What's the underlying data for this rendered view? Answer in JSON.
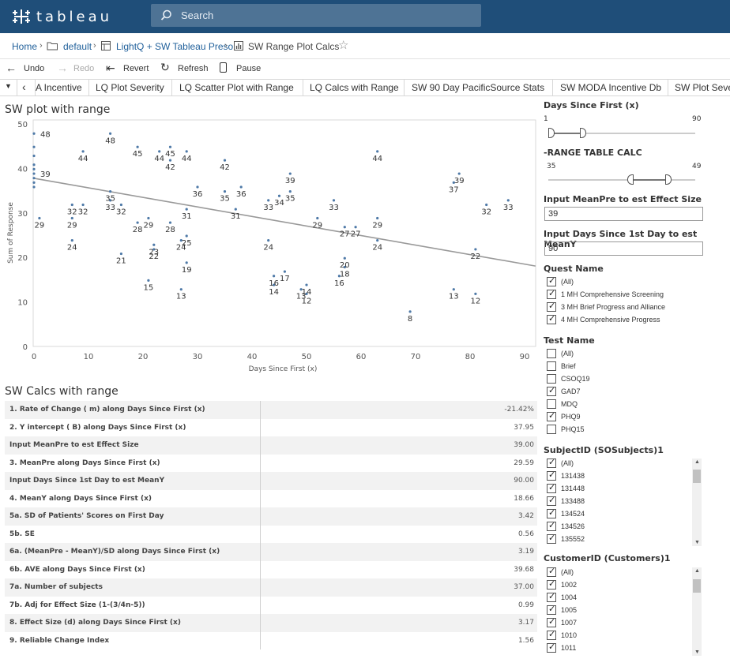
{
  "brand": "tableau",
  "search": {
    "placeholder": "Search"
  },
  "breadcrumb": {
    "home": "Home",
    "folder": "default",
    "workbook": "LightQ + SW Tableau Preso",
    "view": "SW Range Plot Calcs"
  },
  "toolbar": {
    "undo": "Undo",
    "redo": "Redo",
    "revert": "Revert",
    "refresh": "Refresh",
    "pause": "Pause"
  },
  "tabs": [
    "A Incentive",
    "LQ Plot Severity",
    "LQ Scatter Plot with Range",
    "LQ Calcs with Range",
    "SW 90 Day PacificSource Stats",
    "SW MODA Incentive Db",
    "SW Plot Seve"
  ],
  "colors": {
    "topbar": "#1f4e79",
    "point": "#4e79a7",
    "trend": "#999999",
    "link": "#1f5f9a"
  },
  "icons": [
    "tableau-logo-icon",
    "search-icon",
    "folder-icon",
    "workbook-icon",
    "view-icon",
    "star-icon",
    "undo-icon",
    "redo-icon",
    "revert-icon",
    "refresh-icon",
    "pause-icon",
    "tab-menu-icon",
    "tab-left-icon"
  ],
  "chart_title": "SW plot with range",
  "chart_data": {
    "type": "scatter",
    "xlabel": "Days Since First (x)",
    "ylabel": "Sum of Response",
    "xlim": [
      0,
      92
    ],
    "ylim": [
      0,
      50
    ],
    "xticks": [
      0,
      10,
      20,
      30,
      40,
      50,
      60,
      70,
      80,
      90
    ],
    "yticks": [
      0,
      10,
      20,
      30,
      40,
      50
    ],
    "grid": false,
    "trend_line": {
      "intercept": 37.95,
      "slope": -0.2142
    },
    "points": [
      [
        0,
        48
      ],
      [
        0,
        45
      ],
      [
        0,
        43
      ],
      [
        0,
        41
      ],
      [
        0,
        40
      ],
      [
        0,
        39
      ],
      [
        0,
        38
      ],
      [
        0,
        37
      ],
      [
        0,
        36
      ],
      [
        1,
        29
      ],
      [
        7,
        32
      ],
      [
        7,
        29
      ],
      [
        7,
        24
      ],
      [
        9,
        32
      ],
      [
        9,
        44
      ],
      [
        14,
        48
      ],
      [
        14,
        35
      ],
      [
        14,
        33
      ],
      [
        16,
        32
      ],
      [
        16,
        21
      ],
      [
        19,
        45
      ],
      [
        19,
        28
      ],
      [
        21,
        29
      ],
      [
        21,
        15
      ],
      [
        22,
        23
      ],
      [
        22,
        22
      ],
      [
        23,
        44
      ],
      [
        25,
        45
      ],
      [
        25,
        42
      ],
      [
        25,
        28
      ],
      [
        27,
        24
      ],
      [
        27,
        13
      ],
      [
        28,
        31
      ],
      [
        28,
        19
      ],
      [
        28,
        25
      ],
      [
        28,
        44
      ],
      [
        30,
        36
      ],
      [
        35,
        35
      ],
      [
        35,
        42
      ],
      [
        37,
        31
      ],
      [
        38,
        36
      ],
      [
        43,
        33
      ],
      [
        43,
        24
      ],
      [
        44,
        16
      ],
      [
        44,
        14
      ],
      [
        45,
        34
      ],
      [
        46,
        17
      ],
      [
        47,
        35
      ],
      [
        47,
        39
      ],
      [
        49,
        13
      ],
      [
        50,
        12
      ],
      [
        50,
        14
      ],
      [
        52,
        29
      ],
      [
        55,
        33
      ],
      [
        56,
        16
      ],
      [
        57,
        18
      ],
      [
        57,
        20
      ],
      [
        57,
        27
      ],
      [
        59,
        27
      ],
      [
        63,
        44
      ],
      [
        63,
        29
      ],
      [
        63,
        24
      ],
      [
        69,
        8
      ],
      [
        77,
        37
      ],
      [
        77,
        13
      ],
      [
        78,
        39
      ],
      [
        81,
        22
      ],
      [
        81,
        12
      ],
      [
        83,
        32
      ],
      [
        87,
        33
      ]
    ],
    "labels": [
      [
        0,
        48,
        "48"
      ],
      [
        0,
        39,
        "39"
      ],
      [
        1,
        29,
        "29"
      ],
      [
        7,
        32,
        "32"
      ],
      [
        7,
        29,
        "29"
      ],
      [
        7,
        24,
        "24"
      ],
      [
        9,
        32,
        "32"
      ],
      [
        9,
        44,
        "44"
      ],
      [
        14,
        48,
        "48"
      ],
      [
        14,
        35,
        "35"
      ],
      [
        14,
        33,
        "33"
      ],
      [
        16,
        32,
        "32"
      ],
      [
        16,
        21,
        "21"
      ],
      [
        19,
        45,
        "45"
      ],
      [
        19,
        28,
        "28"
      ],
      [
        21,
        29,
        "29"
      ],
      [
        21,
        15,
        "15"
      ],
      [
        22,
        23,
        "23"
      ],
      [
        22,
        22,
        "22"
      ],
      [
        23,
        44,
        "44"
      ],
      [
        25,
        45,
        "45"
      ],
      [
        25,
        42,
        "42"
      ],
      [
        25,
        28,
        "28"
      ],
      [
        27,
        24,
        "24"
      ],
      [
        27,
        13,
        "13"
      ],
      [
        28,
        31,
        "31"
      ],
      [
        28,
        19,
        "19"
      ],
      [
        28,
        25,
        "25"
      ],
      [
        28,
        44,
        "44"
      ],
      [
        30,
        36,
        "36"
      ],
      [
        35,
        35,
        "35"
      ],
      [
        35,
        42,
        "42"
      ],
      [
        37,
        31,
        "31"
      ],
      [
        38,
        36,
        "36"
      ],
      [
        43,
        33,
        "33"
      ],
      [
        43,
        24,
        "24"
      ],
      [
        44,
        16,
        "16"
      ],
      [
        44,
        14,
        "14"
      ],
      [
        45,
        34,
        "34"
      ],
      [
        46,
        17,
        "17"
      ],
      [
        47,
        35,
        "35"
      ],
      [
        47,
        39,
        "39"
      ],
      [
        49,
        13,
        "13"
      ],
      [
        50,
        12,
        "12"
      ],
      [
        50,
        14,
        "14"
      ],
      [
        52,
        29,
        "29"
      ],
      [
        55,
        33,
        "33"
      ],
      [
        56,
        16,
        "16"
      ],
      [
        57,
        18,
        "18"
      ],
      [
        57,
        20,
        "20"
      ],
      [
        57,
        27,
        "27"
      ],
      [
        59,
        27,
        "27"
      ],
      [
        63,
        44,
        "44"
      ],
      [
        63,
        29,
        "29"
      ],
      [
        63,
        24,
        "24"
      ],
      [
        69,
        8,
        "8"
      ],
      [
        77,
        37,
        "37"
      ],
      [
        77,
        13,
        "13"
      ],
      [
        78,
        39,
        "39"
      ],
      [
        81,
        22,
        "22"
      ],
      [
        81,
        12,
        "12"
      ],
      [
        83,
        32,
        "32"
      ],
      [
        87,
        33,
        "33"
      ]
    ]
  },
  "calc_title": "SW Calcs with range",
  "calc_rows": [
    {
      "label": "1. Rate of Change ( m) along Days Since First (x)",
      "value": "-21.42%"
    },
    {
      "label": "2. Y intercept ( B) along Days Since First (x)",
      "value": "37.95"
    },
    {
      "label": "Input MeanPre to est Effect Size",
      "value": "39.00"
    },
    {
      "label": "3.  MeanPre along Days Since First (x)",
      "value": "29.59"
    },
    {
      "label": "Input Days Since 1st Day to est MeanY",
      "value": "90.00"
    },
    {
      "label": "4. MeanY along Days Since First (x)",
      "value": "18.66"
    },
    {
      "label": "5a. SD of Patients' Scores on First Day",
      "value": "3.42"
    },
    {
      "label": "5b. SE",
      "value": "0.56"
    },
    {
      "label": "6a. (MeanPre - MeanY)/SD along Days Since First (x)",
      "value": "3.19"
    },
    {
      "label": "6b. AVE along Days Since First (x)",
      "value": "39.68"
    },
    {
      "label": "7a. Number of subjects",
      "value": "37.00"
    },
    {
      "label": "7b. Adj for Effect Size (1-(3/4n-5))",
      "value": "0.99"
    },
    {
      "label": "8. Effect Size (d) along Days Since First (x)",
      "value": "3.17"
    },
    {
      "label": "9. Reliable Change Index",
      "value": "1.56"
    }
  ],
  "filters": {
    "days_since_first": {
      "title": "Days Since First (x)",
      "min_label": "1",
      "max_label": "90"
    },
    "range_table_calc": {
      "title": "-RANGE TABLE CALC",
      "min_label": "35",
      "max_label": "49"
    },
    "input_meanpre": {
      "title": "Input MeanPre to est Effect Size",
      "value": "39"
    },
    "input_days": {
      "title": "Input Days Since 1st Day to est MeanY",
      "value": "90"
    },
    "quest_name": {
      "title": "Quest Name",
      "items": [
        {
          "label": "(All)",
          "checked": true
        },
        {
          "label": "1 MH Comprehensive Screening",
          "checked": true
        },
        {
          "label": "3 MH Brief Progress and Alliance",
          "checked": true
        },
        {
          "label": "4 MH Comprehensive Progress",
          "checked": true
        }
      ]
    },
    "test_name": {
      "title": "Test Name",
      "items": [
        {
          "label": "(All)",
          "checked": false
        },
        {
          "label": "Brief",
          "checked": false
        },
        {
          "label": "CSOQ19",
          "checked": false
        },
        {
          "label": "GAD7",
          "checked": true
        },
        {
          "label": "MDQ",
          "checked": false
        },
        {
          "label": "PHQ9",
          "checked": true
        },
        {
          "label": "PHQ15",
          "checked": false
        }
      ]
    },
    "subject_id": {
      "title": "SubjectID (SOSubjects)1",
      "items": [
        {
          "label": "(All)",
          "checked": true
        },
        {
          "label": "131438",
          "checked": true
        },
        {
          "label": "131448",
          "checked": true
        },
        {
          "label": "133488",
          "checked": true
        },
        {
          "label": "134524",
          "checked": true
        },
        {
          "label": "134526",
          "checked": true
        },
        {
          "label": "135552",
          "checked": true
        }
      ]
    },
    "customer_id": {
      "title": "CustomerID (Customers)1",
      "items": [
        {
          "label": "(All)",
          "checked": true
        },
        {
          "label": "1002",
          "checked": true
        },
        {
          "label": "1004",
          "checked": true
        },
        {
          "label": "1005",
          "checked": true
        },
        {
          "label": "1007",
          "checked": true
        },
        {
          "label": "1010",
          "checked": true
        },
        {
          "label": "1011",
          "checked": true
        }
      ]
    }
  }
}
